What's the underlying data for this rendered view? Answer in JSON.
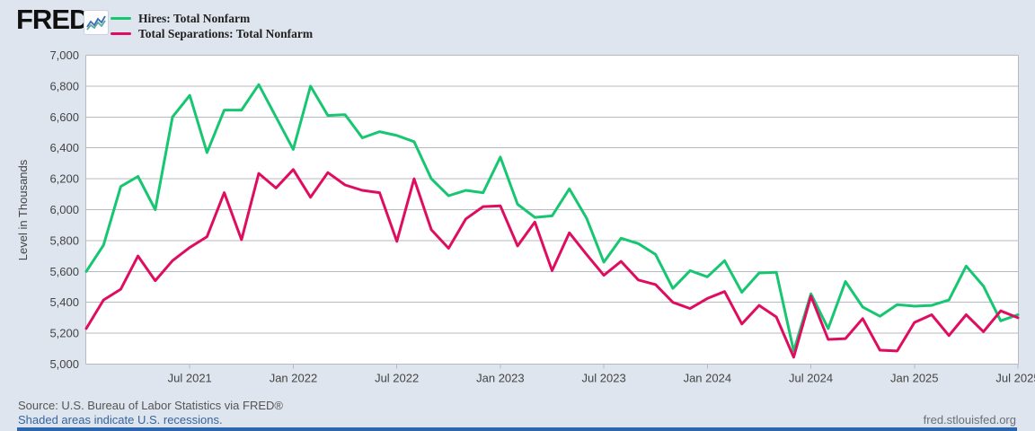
{
  "header": {
    "logo_text": "FRED",
    "logo_mark": "®",
    "logo_icon": "line-chart-icon"
  },
  "chart_data": {
    "type": "line",
    "title": "",
    "ylabel": "Level in Thousands",
    "ylim": [
      5000,
      7000
    ],
    "grid": "horizontal",
    "legend_position": "top-left",
    "x_range": {
      "start": "Jan 2021",
      "end": "Jul 2025",
      "frequency": "monthly",
      "points": 55
    },
    "yticks": [
      {
        "label": "7,000",
        "v": 7000
      },
      {
        "label": "6,800",
        "v": 6800
      },
      {
        "label": "6,600",
        "v": 6600
      },
      {
        "label": "6,400",
        "v": 6400
      },
      {
        "label": "6,200",
        "v": 6200
      },
      {
        "label": "6,000",
        "v": 6000
      },
      {
        "label": "5,800",
        "v": 5800
      },
      {
        "label": "5,600",
        "v": 5600
      },
      {
        "label": "5,400",
        "v": 5400
      },
      {
        "label": "5,200",
        "v": 5200
      },
      {
        "label": "5,000",
        "v": 5000
      }
    ],
    "xticks": [
      {
        "label": "Jul 2021",
        "m": 6
      },
      {
        "label": "Jan 2022",
        "m": 12
      },
      {
        "label": "Jul 2022",
        "m": 18
      },
      {
        "label": "Jan 2023",
        "m": 24
      },
      {
        "label": "Jul 2023",
        "m": 30
      },
      {
        "label": "Jan 2024",
        "m": 36
      },
      {
        "label": "Jul 2024",
        "m": 42
      },
      {
        "label": "Jan 2025",
        "m": 48
      },
      {
        "label": "Jul 2025",
        "m": 54
      }
    ],
    "series": [
      {
        "name": "Hires: Total Nonfarm",
        "color": "#17c671",
        "values": [
          5600,
          5770,
          6150,
          6215,
          6000,
          6600,
          6740,
          6370,
          6645,
          6645,
          6810,
          6600,
          6390,
          6800,
          6610,
          6615,
          6465,
          6505,
          6480,
          6440,
          6200,
          6090,
          6125,
          6110,
          6340,
          6035,
          5950,
          5960,
          6135,
          5945,
          5660,
          5815,
          5780,
          5710,
          5490,
          5605,
          5565,
          5670,
          5465,
          5590,
          5595,
          5085,
          5455,
          5230,
          5535,
          5370,
          5310,
          5385,
          5375,
          5380,
          5415,
          5635,
          5505,
          5280,
          5320
        ]
      },
      {
        "name": "Total Separations: Total Nonfarm",
        "color": "#df0d60",
        "values": [
          5230,
          5415,
          5485,
          5700,
          5540,
          5670,
          5755,
          5825,
          6110,
          5805,
          6235,
          6140,
          6260,
          6080,
          6240,
          6160,
          6125,
          6110,
          5795,
          6200,
          5870,
          5750,
          5940,
          6020,
          6025,
          5765,
          5920,
          5605,
          5850,
          5710,
          5575,
          5665,
          5545,
          5515,
          5400,
          5360,
          5425,
          5470,
          5260,
          5380,
          5305,
          5045,
          5440,
          5160,
          5165,
          5295,
          5090,
          5085,
          5270,
          5320,
          5185,
          5320,
          5210,
          5345,
          5300
        ]
      }
    ]
  },
  "footer": {
    "source_text": "Source: U.S. Bureau of Labor Statistics via FRED®",
    "recession_note": "Shaded areas indicate U.S. recessions.",
    "site_url": "fred.stlouisfed.org"
  }
}
